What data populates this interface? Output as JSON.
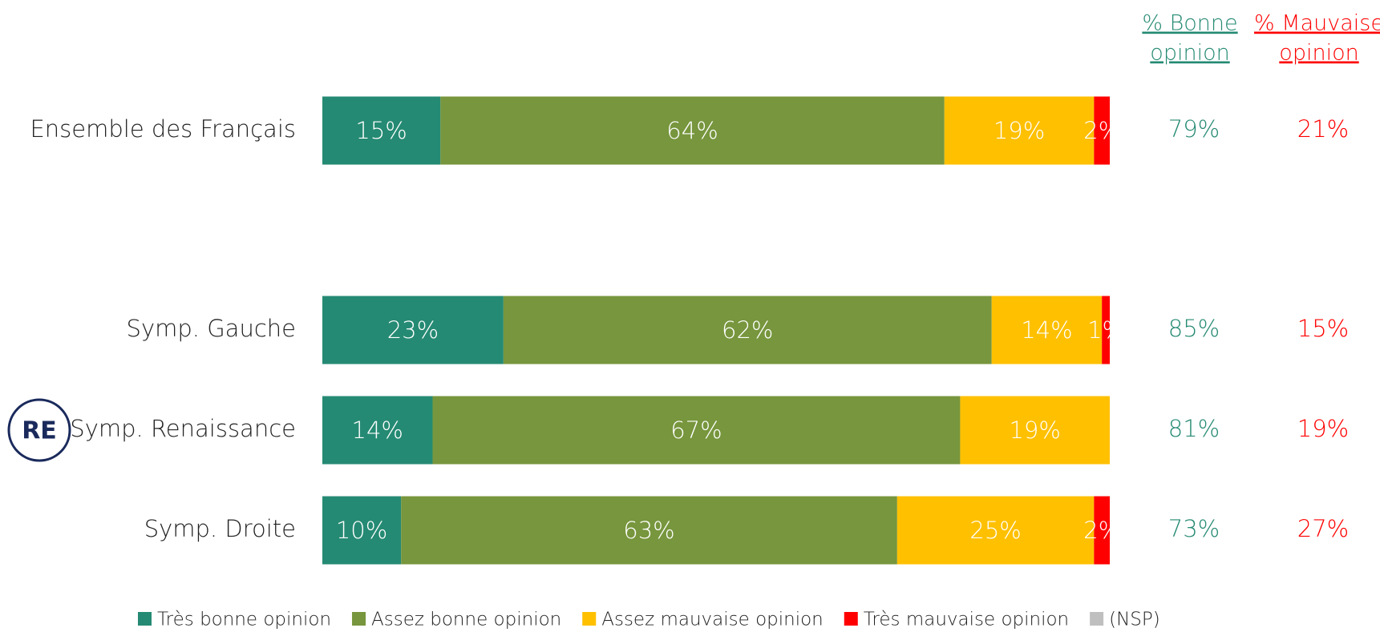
{
  "chart_data": {
    "type": "stacked-bar",
    "categories": [
      "Ensemble des Français",
      "Symp. Gauche",
      "Symp. Renaissance",
      "Symp. Droite"
    ],
    "xlim": [
      0,
      100
    ],
    "logo": "RE",
    "series": [
      {
        "name": "Très bonne opinion",
        "color": "#258a73",
        "values": [
          15,
          23,
          14,
          10
        ],
        "value_labels": [
          "15%",
          "23%",
          "14%",
          "10%"
        ]
      },
      {
        "name": "Assez bonne opinion",
        "color": "#77963d",
        "values": [
          64,
          62,
          67,
          63
        ],
        "value_labels": [
          "64%",
          "62%",
          "67%",
          "63%"
        ]
      },
      {
        "name": "Assez mauvaise opinion",
        "color": "#ffc000",
        "values": [
          19,
          14,
          19,
          25
        ],
        "value_labels": [
          "19%",
          "14%",
          "19%",
          "25%"
        ]
      },
      {
        "name": "Très mauvaise opinion",
        "color": "#ff0000",
        "values": [
          2,
          1,
          null,
          2
        ],
        "value_labels": [
          "2%",
          "1%",
          null,
          "2%"
        ]
      },
      {
        "name": "(NSP)",
        "color": "#bfbfbf",
        "values": [
          null,
          null,
          null,
          null
        ]
      }
    ],
    "summary_columns": [
      {
        "name": [
          "% Bonne",
          "opinion"
        ],
        "color": "#258a73",
        "values": [
          79,
          85,
          81,
          73
        ],
        "value_labels": [
          "79%",
          "85%",
          "81%",
          "73%"
        ]
      },
      {
        "name": [
          "% Mauvaise",
          "opinion"
        ],
        "color": "#ff0000",
        "values": [
          21,
          15,
          19,
          27
        ],
        "value_labels": [
          "21%",
          "15%",
          "19%",
          "27%"
        ]
      }
    ]
  }
}
